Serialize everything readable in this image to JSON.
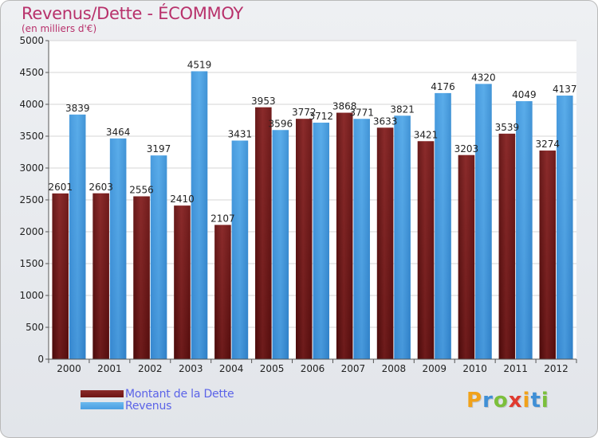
{
  "header": {
    "title": "Revenus/Dette - ÉCOMMOY",
    "subtitle": "(en milliers d'€)"
  },
  "colors": {
    "dette": "#6e1414",
    "revenus": "#4a9ee2"
  },
  "chart_data": {
    "type": "bar",
    "title": "Revenus/Dette - ÉCOMMOY",
    "subtitle": "(en milliers d'€)",
    "categories": [
      "2000",
      "2001",
      "2002",
      "2003",
      "2004",
      "2005",
      "2006",
      "2007",
      "2008",
      "2009",
      "2010",
      "2011",
      "2012"
    ],
    "series": [
      {
        "name": "Montant de la Dette",
        "values": [
          2601,
          2603,
          2556,
          2410,
          2107,
          3953,
          3772,
          3868,
          3633,
          3421,
          3203,
          3539,
          3274
        ],
        "labels": [
          "2601",
          "2603",
          "2556",
          "2410",
          "2107",
          "3953",
          "3772",
          "3868",
          "3633",
          "3421",
          "3203",
          "3539",
          "3274"
        ]
      },
      {
        "name": "Revenus",
        "values": [
          3839,
          3464,
          3197,
          4519,
          3431,
          3596,
          3712,
          3771,
          3821,
          4176,
          4320,
          4049,
          4137
        ],
        "labels": [
          "3839",
          "3464",
          "3197",
          "4519",
          "3431",
          "3596",
          "3712",
          "3771",
          "3821",
          "4176",
          "4320",
          "4049",
          "4137"
        ]
      }
    ],
    "yticks": [
      0,
      500,
      1000,
      1500,
      2000,
      2500,
      3000,
      3500,
      4000,
      4500,
      5000
    ],
    "ylim": [
      0,
      5000
    ],
    "grid": true,
    "legend": "bottom-left"
  },
  "logo": {
    "letters": [
      "P",
      "r",
      "o",
      "x",
      "i",
      "t",
      "i"
    ],
    "colors": [
      "#f1a21a",
      "#3f8fd6",
      "#7bbf3b",
      "#e03a2f",
      "#f1a21a",
      "#3f8fd6",
      "#7bbf3b"
    ]
  }
}
